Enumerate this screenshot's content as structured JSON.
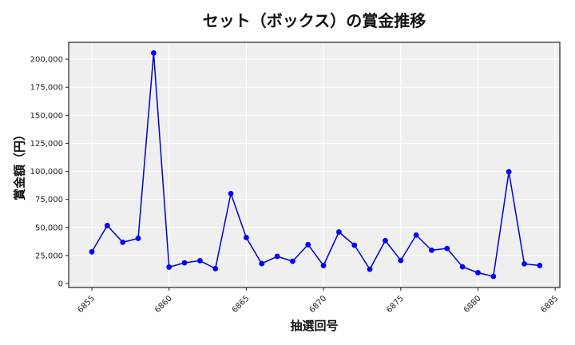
{
  "chart_data": {
    "type": "line",
    "title": "セット（ボックス）の賞金推移",
    "xlabel": "抽選回号",
    "ylabel": "賞金額（円）",
    "x": [
      6855,
      6856,
      6857,
      6858,
      6859,
      6860,
      6861,
      6862,
      6863,
      6864,
      6865,
      6866,
      6867,
      6868,
      6869,
      6870,
      6871,
      6872,
      6873,
      6874,
      6875,
      6876,
      6877,
      6878,
      6879,
      6880,
      6881,
      6882,
      6883,
      6884
    ],
    "series": [
      {
        "name": "セット（ボックス）",
        "values": [
          28300,
          51700,
          36800,
          40300,
          205500,
          14700,
          18500,
          20400,
          13300,
          80200,
          41000,
          17800,
          24200,
          19900,
          34700,
          16100,
          46000,
          34200,
          12800,
          38300,
          20600,
          43200,
          29700,
          31300,
          14900,
          9700,
          6400,
          99600,
          17600,
          16100
        ],
        "color": "#0000CD",
        "marker": "circle"
      }
    ],
    "xticks": [
      6855,
      6860,
      6865,
      6870,
      6875,
      6880,
      6885
    ],
    "yticks": [
      0,
      25000,
      50000,
      75000,
      100000,
      125000,
      150000,
      175000,
      200000
    ],
    "ytick_labels": [
      "0",
      "25,000",
      "50,000",
      "75,000",
      "100,000",
      "125,000",
      "150,000",
      "175,000",
      "200,000"
    ],
    "xlim": [
      6853.5,
      6885.3
    ],
    "ylim": [
      -3500,
      215000
    ],
    "grid": true,
    "legend": "none",
    "background": "#EFEFEF"
  }
}
